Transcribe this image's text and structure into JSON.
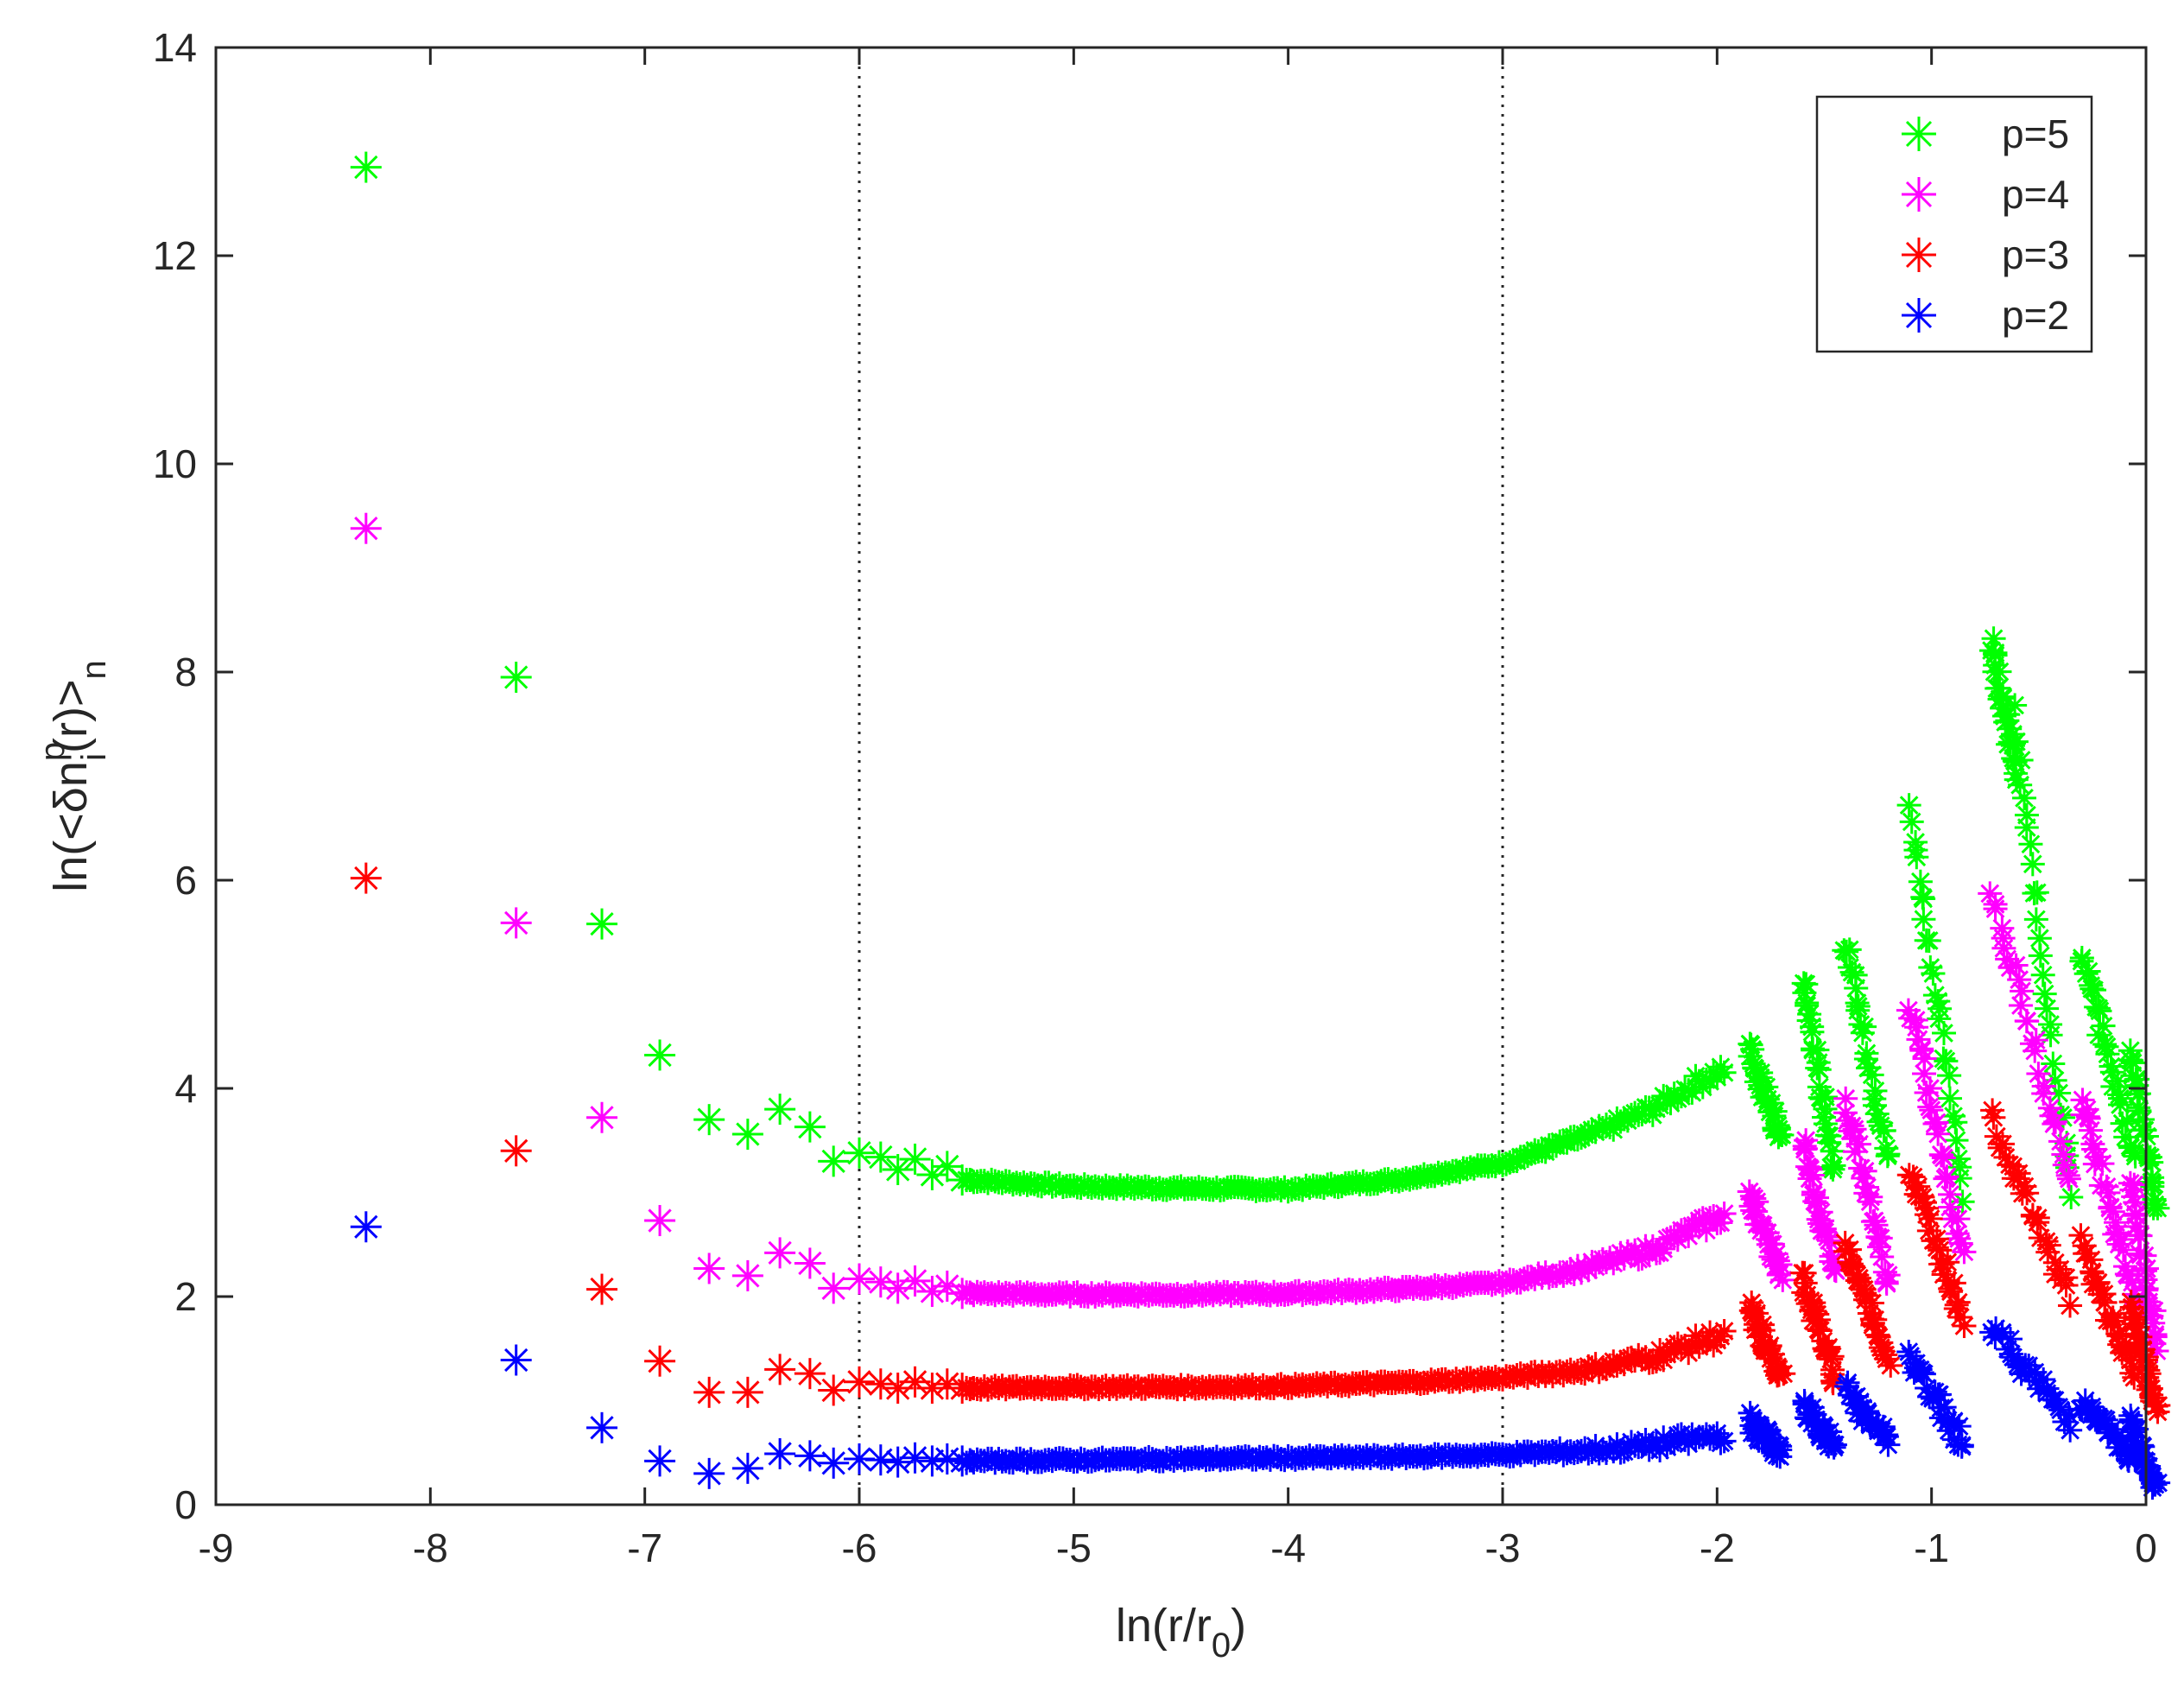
{
  "chart_data": {
    "type": "scatter",
    "xlabel": "ln(r/r_0)",
    "xlabel_parts": {
      "pre": "ln(r/r",
      "sub": "0",
      "post": ")"
    },
    "ylabel": "ln(<δn_i^p(r)>_n)",
    "ylabel_parts": {
      "pre": "ln(<δn",
      "sup": "p",
      "sub": "i",
      "mid": "(r)>",
      "sub2": "n"
    },
    "xlim": [
      -9,
      0
    ],
    "ylim": [
      0,
      14
    ],
    "xticks": [
      -9,
      -8,
      -7,
      -6,
      -5,
      -4,
      -3,
      -2,
      -1,
      0
    ],
    "yticks": [
      0,
      2,
      4,
      6,
      8,
      10,
      12,
      14
    ],
    "vertical_reference_lines": [
      -6,
      -3
    ],
    "legend_position": "top-right",
    "marker": "asterisk",
    "series": [
      {
        "name": "p=5",
        "color": "#00ff00",
        "points": [
          [
            -8.3,
            12.85
          ],
          [
            -7.6,
            7.95
          ],
          [
            -7.2,
            5.58
          ],
          [
            -6.93,
            4.32
          ],
          [
            -6.7,
            3.7
          ],
          [
            -6.52,
            3.56
          ],
          [
            -6.37,
            3.8
          ],
          [
            -6.23,
            3.63
          ],
          [
            -6.12,
            3.3
          ],
          [
            -6.0,
            3.38
          ],
          [
            -5.9,
            3.34
          ],
          [
            -5.82,
            3.22
          ],
          [
            -5.74,
            3.32
          ],
          [
            -5.66,
            3.17
          ],
          [
            -5.59,
            3.25
          ],
          [
            -5.52,
            3.12
          ]
        ],
        "dense": [
          [
            -5.5,
            3.12
          ],
          [
            -5.0,
            3.06
          ],
          [
            -4.5,
            3.04
          ],
          [
            -4.0,
            3.03
          ],
          [
            -3.5,
            3.12
          ],
          [
            -3.0,
            3.28
          ],
          [
            -2.6,
            3.55
          ],
          [
            -2.3,
            3.8
          ],
          [
            -2.1,
            4.05
          ],
          [
            -1.95,
            4.2
          ]
        ],
        "streaks": [
          [
            -1.85,
            4.4,
            -1.7,
            3.5
          ],
          [
            -1.6,
            5.05,
            -1.45,
            3.2
          ],
          [
            -1.4,
            5.4,
            -1.2,
            3.3
          ],
          [
            -1.1,
            6.7,
            -0.85,
            3.0
          ],
          [
            -0.72,
            8.3,
            -0.6,
            7.0
          ],
          [
            -0.62,
            7.6,
            -0.35,
            3.0
          ],
          [
            -0.3,
            5.3,
            -0.05,
            3.3
          ],
          [
            -0.07,
            4.4,
            0.05,
            2.8
          ]
        ]
      },
      {
        "name": "p=4",
        "color": "#ff00ff",
        "points": [
          [
            -8.3,
            9.38
          ],
          [
            -7.6,
            5.59
          ],
          [
            -7.2,
            3.72
          ],
          [
            -6.93,
            2.73
          ],
          [
            -6.7,
            2.27
          ],
          [
            -6.52,
            2.2
          ],
          [
            -6.37,
            2.42
          ],
          [
            -6.23,
            2.32
          ],
          [
            -6.12,
            2.08
          ],
          [
            -6.0,
            2.17
          ],
          [
            -5.9,
            2.14
          ],
          [
            -5.82,
            2.08
          ],
          [
            -5.74,
            2.15
          ],
          [
            -5.66,
            2.05
          ],
          [
            -5.59,
            2.1
          ],
          [
            -5.52,
            2.03
          ]
        ],
        "dense": [
          [
            -5.5,
            2.03
          ],
          [
            -5.0,
            2.02
          ],
          [
            -4.5,
            2.02
          ],
          [
            -4.0,
            2.03
          ],
          [
            -3.5,
            2.07
          ],
          [
            -3.0,
            2.13
          ],
          [
            -2.6,
            2.28
          ],
          [
            -2.3,
            2.45
          ],
          [
            -2.1,
            2.65
          ],
          [
            -1.95,
            2.8
          ]
        ],
        "streaks": [
          [
            -1.85,
            3.0,
            -1.7,
            2.2
          ],
          [
            -1.6,
            3.5,
            -1.45,
            2.2
          ],
          [
            -1.4,
            3.9,
            -1.2,
            2.1
          ],
          [
            -1.1,
            4.8,
            -0.85,
            2.4
          ],
          [
            -0.72,
            5.9,
            -0.35,
            3.1
          ],
          [
            -0.3,
            3.9,
            -0.05,
            2.0
          ],
          [
            -0.07,
            3.1,
            0.05,
            1.5
          ]
        ]
      },
      {
        "name": "p=3",
        "color": "#ff0000",
        "points": [
          [
            -8.3,
            6.02
          ],
          [
            -7.6,
            3.4
          ],
          [
            -7.2,
            2.07
          ],
          [
            -6.93,
            1.38
          ],
          [
            -6.7,
            1.08
          ],
          [
            -6.52,
            1.08
          ],
          [
            -6.37,
            1.3
          ],
          [
            -6.23,
            1.26
          ],
          [
            -6.12,
            1.1
          ],
          [
            -6.0,
            1.18
          ],
          [
            -5.9,
            1.16
          ],
          [
            -5.82,
            1.12
          ],
          [
            -5.74,
            1.18
          ],
          [
            -5.66,
            1.12
          ],
          [
            -5.59,
            1.16
          ],
          [
            -5.52,
            1.12
          ]
        ],
        "dense": [
          [
            -5.5,
            1.12
          ],
          [
            -5.0,
            1.13
          ],
          [
            -4.5,
            1.13
          ],
          [
            -4.0,
            1.14
          ],
          [
            -3.5,
            1.17
          ],
          [
            -3.0,
            1.22
          ],
          [
            -2.6,
            1.3
          ],
          [
            -2.3,
            1.42
          ],
          [
            -2.1,
            1.55
          ],
          [
            -1.95,
            1.65
          ]
        ],
        "streaks": [
          [
            -1.85,
            1.9,
            -1.7,
            1.2
          ],
          [
            -1.6,
            2.2,
            -1.45,
            1.2
          ],
          [
            -1.4,
            2.5,
            -1.2,
            1.4
          ],
          [
            -1.1,
            3.2,
            -0.85,
            1.8
          ],
          [
            -0.72,
            3.7,
            -0.35,
            2.0
          ],
          [
            -0.3,
            2.5,
            -0.05,
            1.2
          ],
          [
            -0.07,
            1.9,
            0.05,
            0.9
          ]
        ]
      },
      {
        "name": "p=2",
        "color": "#0000ff",
        "points": [
          [
            -8.3,
            2.67
          ],
          [
            -7.6,
            1.39
          ],
          [
            -7.2,
            0.74
          ],
          [
            -6.93,
            0.42
          ],
          [
            -6.7,
            0.3
          ],
          [
            -6.52,
            0.35
          ],
          [
            -6.37,
            0.49
          ],
          [
            -6.23,
            0.47
          ],
          [
            -6.12,
            0.4
          ],
          [
            -6.0,
            0.44
          ],
          [
            -5.9,
            0.43
          ],
          [
            -5.82,
            0.41
          ],
          [
            -5.74,
            0.45
          ],
          [
            -5.66,
            0.42
          ],
          [
            -5.59,
            0.44
          ],
          [
            -5.52,
            0.42
          ]
        ],
        "dense": [
          [
            -5.5,
            0.42
          ],
          [
            -5.0,
            0.43
          ],
          [
            -4.5,
            0.44
          ],
          [
            -4.0,
            0.45
          ],
          [
            -3.5,
            0.46
          ],
          [
            -3.0,
            0.48
          ],
          [
            -2.6,
            0.52
          ],
          [
            -2.3,
            0.57
          ],
          [
            -2.1,
            0.63
          ],
          [
            -1.95,
            0.68
          ]
        ],
        "streaks": [
          [
            -1.85,
            0.8,
            -1.7,
            0.5
          ],
          [
            -1.6,
            0.95,
            -1.45,
            0.55
          ],
          [
            -1.4,
            1.1,
            -1.2,
            0.6
          ],
          [
            -1.1,
            1.4,
            -0.85,
            0.6
          ],
          [
            -0.72,
            1.7,
            -0.35,
            0.8
          ],
          [
            -0.3,
            1.0,
            -0.05,
            0.4
          ],
          [
            -0.07,
            0.8,
            0.05,
            0.15
          ]
        ]
      }
    ]
  }
}
